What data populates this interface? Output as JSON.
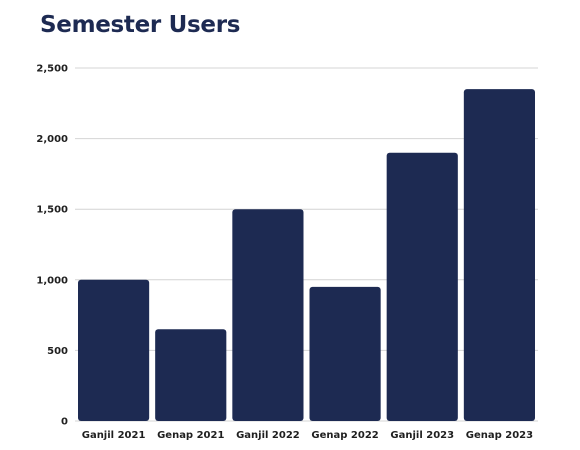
{
  "chart_data": {
    "type": "bar",
    "title": "Semester Users",
    "categories": [
      "Ganjil 2021",
      "Genap 2021",
      "Ganjil 2022",
      "Genap 2022",
      "Ganjil 2023",
      "Genap 2023"
    ],
    "values": [
      1000,
      650,
      1500,
      950,
      1900,
      2350
    ],
    "ylim": [
      0,
      2500
    ],
    "yticks": [
      0,
      500,
      1000,
      1500,
      2000,
      2500
    ],
    "ytick_labels": [
      "0",
      "500",
      "1,000",
      "1,500",
      "2,000",
      "2,500"
    ],
    "xlabel": "",
    "ylabel": "",
    "grid": true,
    "bar_color": "#1d2a52",
    "grid_color": "#d4d4d4"
  }
}
